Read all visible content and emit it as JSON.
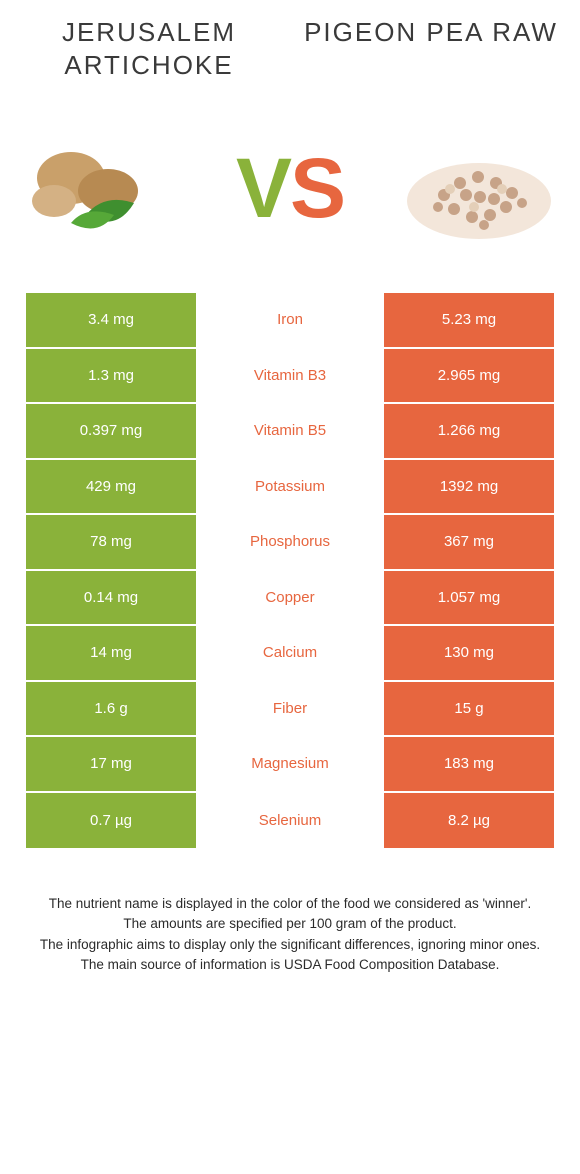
{
  "header": {
    "left_title": "Jerusalem Artichoke",
    "right_title": "Pigeon Pea Raw"
  },
  "vs": {
    "v": "V",
    "s": "S"
  },
  "colors": {
    "left": "#8ab23a",
    "right": "#e7663f",
    "nutrient_winner_right": "#e7663f"
  },
  "rows": [
    {
      "left": "3.4 mg",
      "nutrient": "Iron",
      "right": "5.23 mg",
      "winner": "right"
    },
    {
      "left": "1.3 mg",
      "nutrient": "Vitamin B3",
      "right": "2.965 mg",
      "winner": "right"
    },
    {
      "left": "0.397 mg",
      "nutrient": "Vitamin B5",
      "right": "1.266 mg",
      "winner": "right"
    },
    {
      "left": "429 mg",
      "nutrient": "Potassium",
      "right": "1392 mg",
      "winner": "right"
    },
    {
      "left": "78 mg",
      "nutrient": "Phosphorus",
      "right": "367 mg",
      "winner": "right"
    },
    {
      "left": "0.14 mg",
      "nutrient": "Copper",
      "right": "1.057 mg",
      "winner": "right"
    },
    {
      "left": "14 mg",
      "nutrient": "Calcium",
      "right": "130 mg",
      "winner": "right"
    },
    {
      "left": "1.6 g",
      "nutrient": "Fiber",
      "right": "15 g",
      "winner": "right"
    },
    {
      "left": "17 mg",
      "nutrient": "Magnesium",
      "right": "183 mg",
      "winner": "right"
    },
    {
      "left": "0.7 µg",
      "nutrient": "Selenium",
      "right": "8.2 µg",
      "winner": "right"
    }
  ],
  "footer": {
    "line1": "The nutrient name is displayed in the color of the food we considered as 'winner'.",
    "line2": "The amounts are specified per 100 gram of the product.",
    "line3": "The infographic aims to display only the significant differences, ignoring minor ones.",
    "line4": "The main source of information is USDA Food Composition Database."
  },
  "style": {
    "title_fontsize": 26,
    "row_height": 55.5,
    "value_fontsize": 15,
    "vs_fontsize": 84,
    "footer_fontsize": 13.5
  }
}
